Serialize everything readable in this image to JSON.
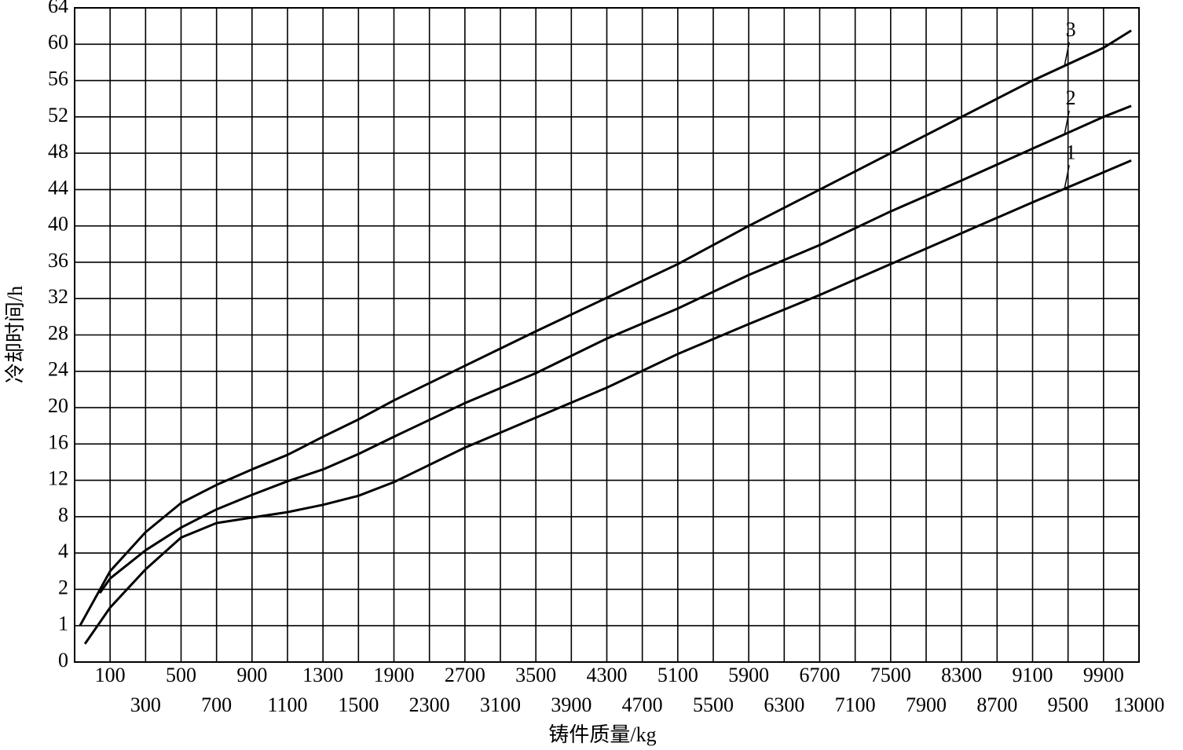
{
  "chart_data": {
    "type": "line",
    "xlabel": "铸件质量/kg",
    "ylabel": "冷却时间/h",
    "xlim": [
      0,
      13000
    ],
    "xticks": [
      100,
      300,
      500,
      700,
      900,
      1100,
      1300,
      1500,
      1900,
      2300,
      2700,
      3100,
      3500,
      3900,
      4300,
      4700,
      5100,
      5500,
      5900,
      6300,
      6700,
      7100,
      7500,
      7900,
      8300,
      8700,
      9100,
      9500,
      9900,
      13000
    ],
    "ylim": [
      0,
      64
    ],
    "yticks": [
      0,
      1,
      2,
      4,
      8,
      12,
      16,
      20,
      24,
      28,
      32,
      36,
      40,
      44,
      48,
      52,
      56,
      60,
      64
    ],
    "grid": true,
    "series": [
      {
        "name": "1",
        "color": "#000000",
        "x": [
          29,
          100,
          300,
          500,
          700,
          900,
          1100,
          1300,
          1500,
          1900,
          2700,
          3500,
          4300,
          5100,
          5900,
          6700,
          7500,
          8300,
          9100,
          9900,
          12320
        ],
        "values": [
          0.5,
          1.5,
          3.1,
          5.7,
          7.3,
          7.9,
          8.5,
          9.3,
          10.3,
          11.8,
          15.6,
          18.9,
          22.2,
          25.9,
          29.2,
          32.4,
          35.8,
          39.2,
          42.6,
          45.9,
          47.2
        ]
      },
      {
        "name": "2",
        "color": "#000000",
        "x": [
          71,
          100,
          300,
          500,
          700,
          900,
          1100,
          1300,
          1500,
          1900,
          2700,
          3500,
          4300,
          5100,
          5900,
          6700,
          7500,
          8300,
          9100,
          9900,
          12320
        ],
        "values": [
          1.9,
          2.6,
          4.3,
          6.8,
          8.8,
          10.4,
          11.9,
          13.2,
          14.9,
          16.8,
          20.5,
          23.8,
          27.6,
          30.9,
          34.6,
          37.9,
          41.6,
          45,
          48.5,
          52,
          53.2
        ]
      },
      {
        "name": "3",
        "color": "#000000",
        "x": [
          15,
          100,
          300,
          500,
          700,
          900,
          1100,
          1300,
          1500,
          1900,
          2700,
          3500,
          4300,
          5100,
          5900,
          6700,
          7500,
          8300,
          9100,
          9900,
          12320
        ],
        "values": [
          1,
          3,
          6.3,
          9.5,
          11.5,
          13.2,
          14.8,
          16.8,
          18.7,
          20.8,
          24.6,
          28.4,
          32.1,
          35.8,
          40,
          44,
          48,
          52,
          56,
          59.6,
          61.5
        ]
      }
    ]
  }
}
